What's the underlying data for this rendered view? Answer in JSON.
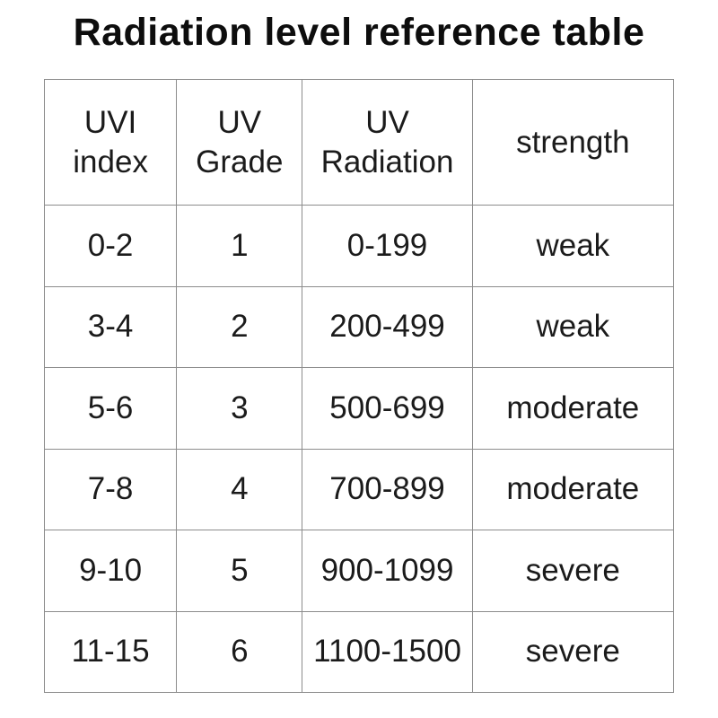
{
  "title": "Radiation level reference table",
  "colors": {
    "background": "#ffffff",
    "text": "#1b1b1b",
    "title_text": "#0d0d0d",
    "table_border": "#8c8c8c"
  },
  "chart_data": {
    "type": "table",
    "title": "Radiation level reference table",
    "columns": [
      "UVI index",
      "UV Grade",
      "UV Radiation",
      "strength"
    ],
    "rows": [
      [
        "0-2",
        "1",
        "0-199",
        "weak"
      ],
      [
        "3-4",
        "2",
        "200-499",
        "weak"
      ],
      [
        "5-6",
        "3",
        "500-699",
        "moderate"
      ],
      [
        "7-8",
        "4",
        "700-899",
        "moderate"
      ],
      [
        "9-10",
        "5",
        "900-1099",
        "severe"
      ],
      [
        "11-15",
        "6",
        "1100-1500",
        "severe"
      ]
    ]
  }
}
